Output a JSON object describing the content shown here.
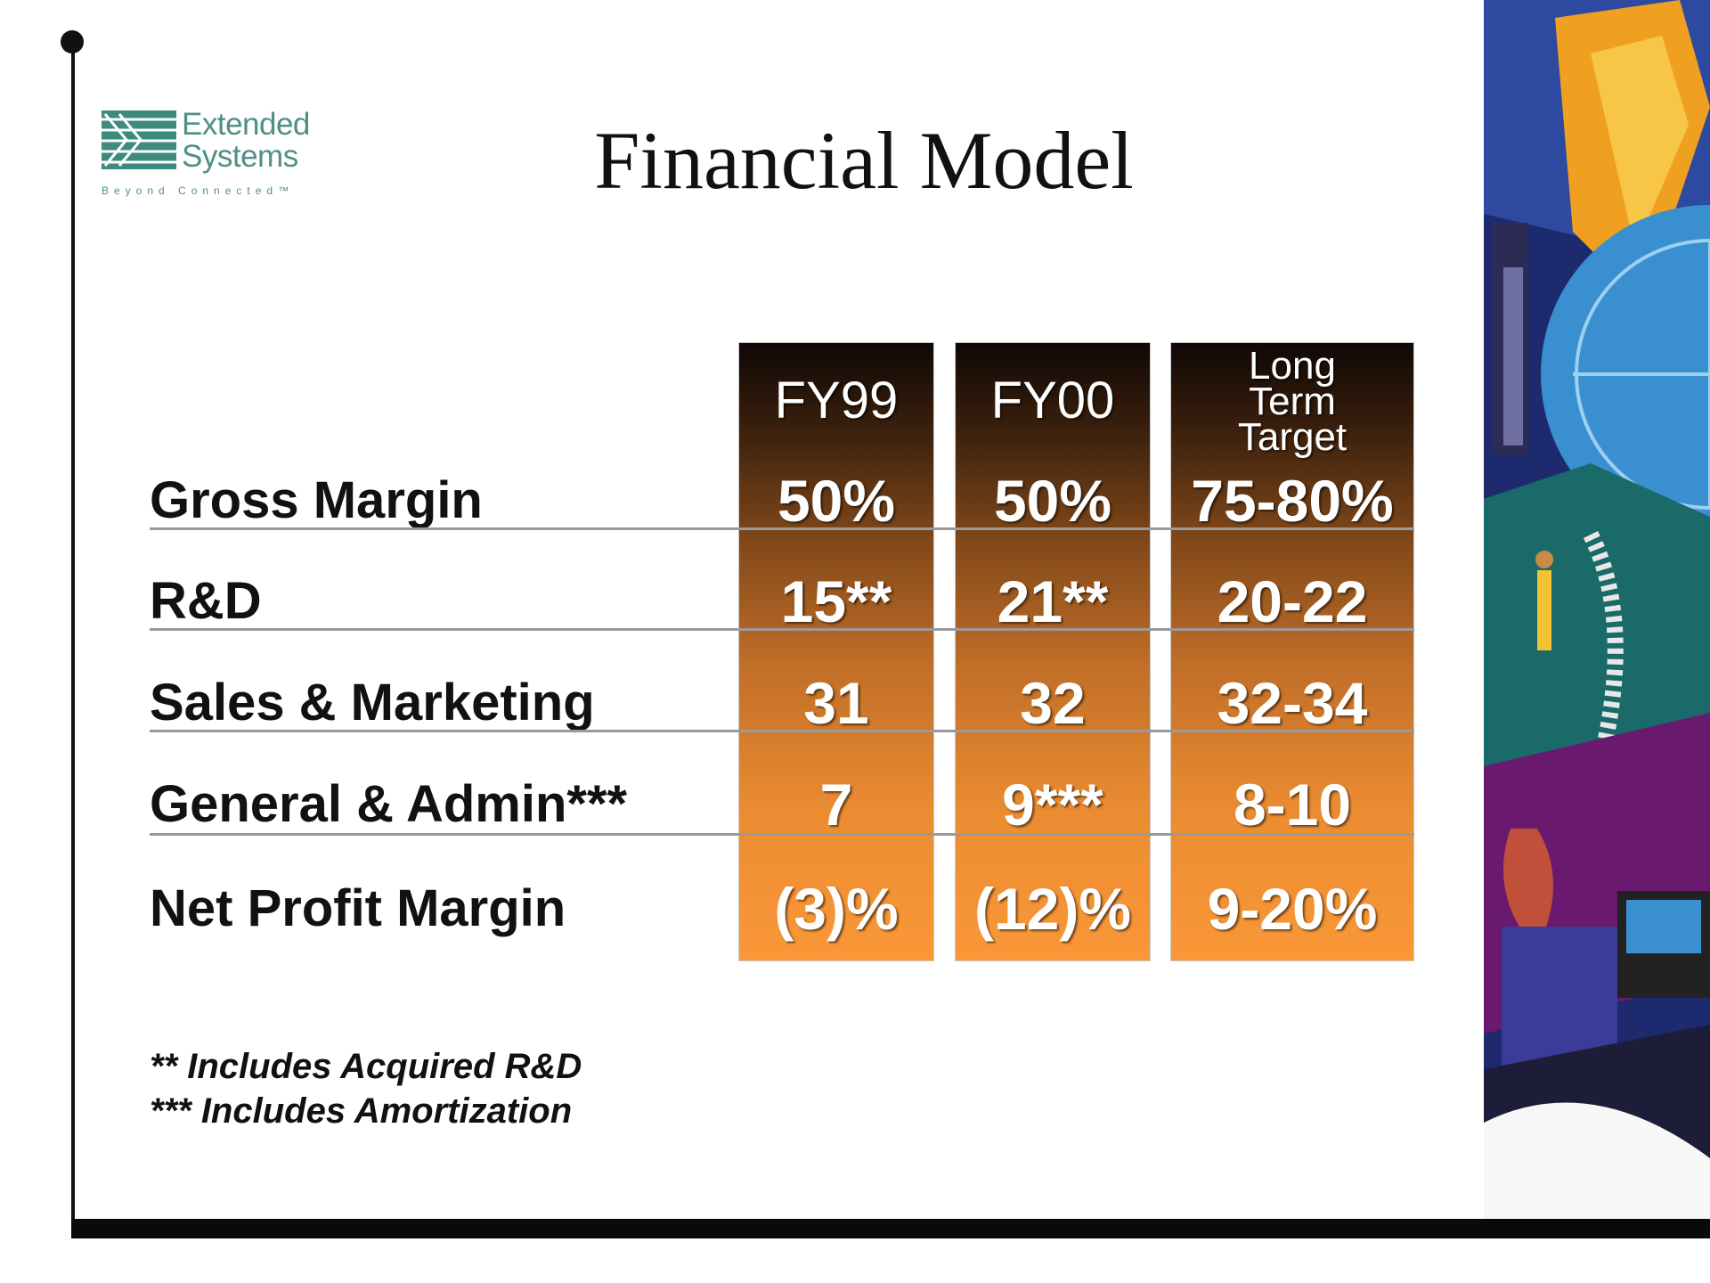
{
  "slide": {
    "title": "Financial Model",
    "logo": {
      "line1": "Extended",
      "line2": "Systems",
      "tagline": "Beyond Connected™"
    }
  },
  "table": {
    "columns": [
      {
        "header": "FY99",
        "values": [
          "50%",
          "15**",
          "31",
          "7",
          "(3)%"
        ]
      },
      {
        "header": "FY00",
        "values": [
          "50%",
          "21**",
          "32",
          "9***",
          "(12)%"
        ]
      },
      {
        "header_lines": [
          "Long",
          "Term",
          "Target"
        ],
        "values": [
          "75-80%",
          "20-22",
          "32-34",
          "8-10",
          "9-20%"
        ]
      }
    ],
    "rows": [
      "Gross Margin",
      "R&D",
      "Sales & Marketing",
      "General &  Admin***",
      "Net Profit Margin"
    ]
  },
  "footnotes": [
    "** Includes Acquired R&D",
    "*** Includes Amortization"
  ],
  "colors": {
    "column_top": "#100705",
    "column_bottom": "#fa9838",
    "logo": "#4f8f86"
  }
}
